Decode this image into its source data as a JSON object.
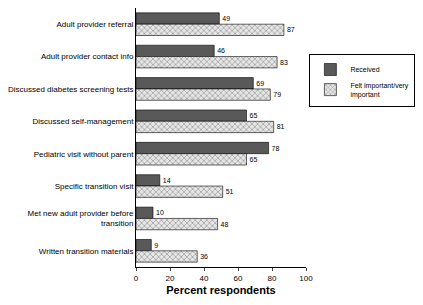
{
  "chart_data": {
    "type": "bar",
    "orientation": "horizontal",
    "categories": [
      "Adult provider referral",
      "Adult provider contact info",
      "Discussed diabetes screening tests",
      "Discussed self-management",
      "Pediatric visit without parent",
      "Specific transition visit",
      "Met new adult provider before transition",
      "Written transition materials"
    ],
    "series": [
      {
        "name": "Received",
        "color": "#595959",
        "marker": "solid",
        "values": [
          49,
          46,
          69,
          65,
          78,
          14,
          10,
          9
        ]
      },
      {
        "name": "Felt important/very important",
        "color": "#e6e6e6",
        "marker": "hatched",
        "values": [
          87,
          83,
          79,
          81,
          65,
          51,
          48,
          36
        ]
      }
    ],
    "x_label": "Percent respondents",
    "xlim": [
      0,
      100
    ],
    "xticks": [
      0,
      20,
      40,
      60,
      80,
      100
    ],
    "grid": false,
    "legend": "right",
    "data_labels": true
  }
}
